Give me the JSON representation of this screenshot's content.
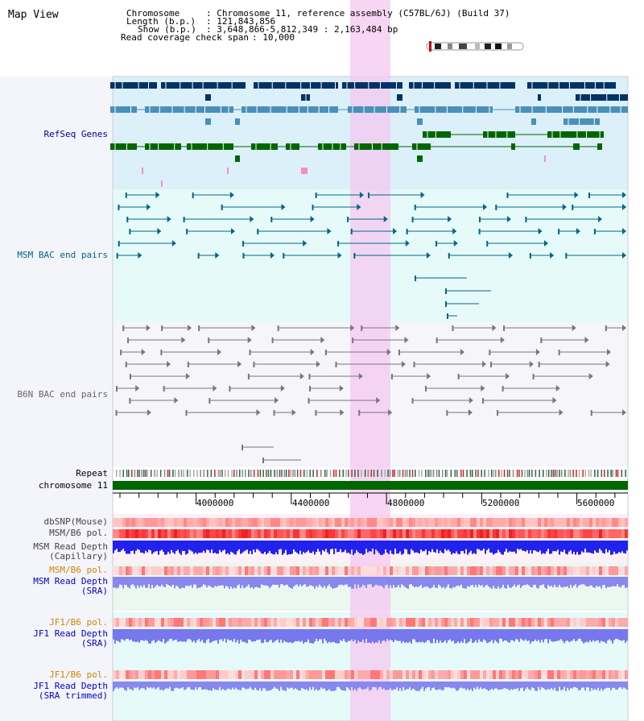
{
  "view_title": "Map View",
  "header": {
    "chromosome_key": "Chromosome",
    "chromosome_val": ": Chromosome 11, reference assembly (C57BL/6J) (Build 37)",
    "length_key": "Length (b.p.)",
    "length_val": ": 121,843,856",
    "show_key": "Show (b.p.)",
    "show_val": ": 3,648,866-5,812,349 : 2,163,484 bp",
    "coverage_key": "Read coverage check span",
    "coverage_val": ": 10,000"
  },
  "tracks": {
    "refseq": "RefSeq Genes",
    "msm_bac": "MSM BAC end pairs",
    "b6n_bac": "B6N BAC end pairs",
    "repeat": "Repeat",
    "chromosome": "chromosome 11",
    "dbsnp": "dbSNP(Mouse)",
    "msm_b6_pol": "MSM/B6 pol.",
    "msm_rd_cap_1": "MSM Read Depth",
    "msm_rd_cap_2": "(Capillary)",
    "msm_b6_pol_2": "MSM/B6 pol.",
    "msm_rd_sra_1": "MSM Read Depth",
    "msm_rd_sra_2": "(SRA)",
    "jf1_b6_pol": "JF1/B6 pol.",
    "jf1_rd_sra_1": "JF1 Read Depth",
    "jf1_rd_sra_2": "(SRA)",
    "jf1_b6_pol_2": "JF1/B6 pol.",
    "jf1_rd_trim_1": "JF1 Read Depth",
    "jf1_rd_trim_2": "(SRA trimmed)"
  },
  "ruler": {
    "ticks": [
      "4000000",
      "4400000",
      "4800000",
      "5200000",
      "5600000"
    ]
  },
  "colors": {
    "refseq_label": "#000099",
    "msm_label": "#006688",
    "b6n_label": "#666666",
    "orange_label": "#cc8800",
    "blue_label": "#0000cc",
    "highlight": "#f4c8f0",
    "chromosome_bar": "#006600"
  }
}
